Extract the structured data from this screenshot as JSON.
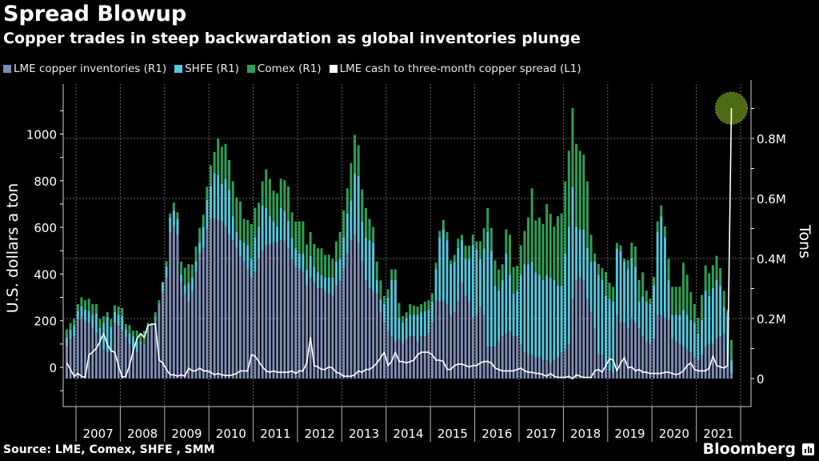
{
  "header": {
    "title": "Spread Blowup",
    "subtitle": "Copper trades in steep backwardation as global inventories plunge"
  },
  "footer": {
    "source": "Source: LME, Comex, SHFE , SMM",
    "logo": "Bloomberg"
  },
  "colors": {
    "lme": "#7d8cb4",
    "shfe": "#55c6dc",
    "comex": "#2f9e58",
    "spread": "#ffffff",
    "highlight": "#4d6b12",
    "background": "#000000"
  },
  "chart_data": {
    "type": "bar",
    "stacked": true,
    "title": "Spread Blowup",
    "subtitle": "Copper trades in steep backwardation as global inventories plunge",
    "frequency": "monthly",
    "x_start": "2006-10",
    "x_end": "2021-10",
    "x_tick_labels": [
      "2007",
      "2008",
      "2009",
      "2010",
      "2011",
      "2012",
      "2013",
      "2014",
      "2015",
      "2016",
      "2017",
      "2018",
      "2019",
      "2020",
      "2021"
    ],
    "ylabel_left": "U.S. dollars a ton",
    "ylabel_right": "Tons",
    "ylim_left": [
      -170,
      1200
    ],
    "ylim_right_millions": [
      -0.09,
      0.99
    ],
    "left_ticks": [
      0,
      200,
      400,
      600,
      800,
      1000
    ],
    "left_tick_labels": [
      "0",
      "200",
      "400",
      "600",
      "800",
      "1000"
    ],
    "right_ticks": [
      0,
      0.2,
      0.4,
      0.6,
      0.8
    ],
    "right_tick_labels": [
      "0",
      "0.2M",
      "0.4M",
      "0.6M",
      "0.8M"
    ],
    "grid": true,
    "legend_placement": "top-left",
    "legend": [
      "LME copper inventories (R1)",
      "SHFE (R1)",
      "Comex (R1)",
      "LME cash to three-month copper spread (L1)"
    ],
    "highlight": "last spread point circled",
    "series": [
      {
        "name": "LME copper inventories (R1)",
        "type": "bar",
        "axis": "right",
        "unit": "million tons",
        "values": [
          0.106,
          0.132,
          0.141,
          0.199,
          0.204,
          0.19,
          0.186,
          0.168,
          0.15,
          0.124,
          0.097,
          0.088,
          0.088,
          0.186,
          0.177,
          0.159,
          0.137,
          0.115,
          0.097,
          0.088,
          0.115,
          0.115,
          0.168,
          0.172,
          0.208,
          0.248,
          0.288,
          0.337,
          0.488,
          0.506,
          0.479,
          0.324,
          0.284,
          0.257,
          0.292,
          0.355,
          0.417,
          0.435,
          0.497,
          0.533,
          0.533,
          0.528,
          0.524,
          0.506,
          0.479,
          0.461,
          0.435,
          0.408,
          0.39,
          0.364,
          0.337,
          0.355,
          0.399,
          0.426,
          0.444,
          0.448,
          0.453,
          0.453,
          0.461,
          0.457,
          0.435,
          0.399,
          0.372,
          0.364,
          0.355,
          0.31,
          0.337,
          0.319,
          0.301,
          0.301,
          0.292,
          0.284,
          0.275,
          0.31,
          0.328,
          0.364,
          0.417,
          0.461,
          0.479,
          0.453,
          0.39,
          0.328,
          0.301,
          0.292,
          0.284,
          0.221,
          0.186,
          0.159,
          0.141,
          0.124,
          0.132,
          0.115,
          0.132,
          0.141,
          0.141,
          0.124,
          0.141,
          0.141,
          0.15,
          0.186,
          0.257,
          0.257,
          0.257,
          0.248,
          0.212,
          0.221,
          0.257,
          0.319,
          0.275,
          0.257,
          0.204,
          0.212,
          0.239,
          0.212,
          0.106,
          0.106,
          0.106,
          0.124,
          0.141,
          0.15,
          0.159,
          0.141,
          0.141,
          0.115,
          0.088,
          0.079,
          0.079,
          0.07,
          0.07,
          0.061,
          0.061,
          0.052,
          0.061,
          0.07,
          0.088,
          0.097,
          0.115,
          0.266,
          0.328,
          0.337,
          0.328,
          0.266,
          0.221,
          0.168,
          0.079,
          0.079,
          0.035,
          0.026,
          0.017,
          0.212,
          0.186,
          0.186,
          0.168,
          0.204,
          0.186,
          0.168,
          0.141,
          0.124,
          0.115,
          0.133,
          0.212,
          0.212,
          0.204,
          0.195,
          0.133,
          0.124,
          0.115,
          0.106,
          0.097,
          0.088,
          0.07,
          0.061,
          0.079,
          0.106,
          0.115,
          0.115,
          0.133,
          0.141,
          0.15,
          0.079,
          0.017
        ]
      },
      {
        "name": "SHFE (R1)",
        "type": "bar",
        "axis": "right",
        "unit": "million tons",
        "values": [
          0.031,
          0.031,
          0.036,
          0.027,
          0.036,
          0.04,
          0.04,
          0.044,
          0.067,
          0.044,
          0.089,
          0.116,
          0.084,
          0.036,
          0.036,
          0.049,
          0.027,
          0.036,
          0.044,
          0.036,
          0.009,
          0,
          0,
          0,
          0,
          0,
          0.031,
          0.036,
          0.049,
          0.053,
          0.053,
          0.022,
          0.027,
          0.062,
          0.044,
          0.036,
          0.036,
          0.071,
          0.098,
          0.107,
          0.151,
          0.151,
          0.124,
          0.16,
          0.151,
          0.08,
          0.053,
          0.053,
          0.062,
          0.08,
          0.062,
          0.116,
          0.107,
          0.151,
          0.124,
          0.093,
          0.071,
          0.053,
          0.107,
          0.102,
          0.089,
          0.071,
          0.062,
          0.053,
          0.062,
          0.053,
          0.071,
          0.053,
          0.053,
          0.044,
          0.044,
          0.053,
          0.062,
          0.08,
          0.071,
          0.107,
          0.133,
          0.133,
          0.204,
          0.222,
          0.133,
          0.142,
          0.16,
          0.16,
          0.044,
          0.044,
          0.062,
          0.111,
          0.187,
          0.204,
          0.071,
          0.071,
          0.071,
          0.071,
          0.071,
          0.089,
          0.08,
          0.084,
          0.08,
          0.071,
          0.107,
          0.213,
          0.24,
          0.213,
          0.169,
          0.169,
          0.178,
          0.142,
          0.124,
          0.142,
          0.24,
          0.218,
          0.16,
          0.222,
          0.382,
          0.32,
          0.204,
          0.169,
          0.187,
          0.267,
          0.187,
          0.142,
          0.151,
          0.231,
          0.293,
          0.302,
          0.311,
          0.284,
          0.276,
          0.267,
          0.284,
          0.284,
          0.267,
          0.24,
          0.222,
          0.32,
          0.391,
          0.373,
          0.178,
          0.16,
          0.169,
          0.169,
          0.169,
          0.222,
          0.267,
          0.249,
          0.24,
          0.24,
          0.24,
          0.222,
          0.24,
          0.204,
          0.196,
          0.196,
          0.187,
          0.089,
          0.133,
          0.133,
          0.133,
          0.178,
          0.276,
          0.329,
          0.267,
          0.133,
          0.08,
          0.089,
          0.098,
          0.124,
          0.116,
          0.107,
          0.116,
          0.089,
          0.116,
          0.187,
          0.16,
          0.187,
          0.196,
          0.169,
          0.089,
          0.142,
          0.044
        ]
      },
      {
        "name": "Comex (R1)",
        "type": "bar",
        "axis": "right",
        "unit": "million tons",
        "values": [
          0.027,
          0.022,
          0.022,
          0.022,
          0.031,
          0.031,
          0.04,
          0.036,
          0.031,
          0.031,
          0.022,
          0.018,
          0.027,
          0.022,
          0.027,
          0.027,
          0.018,
          0.027,
          0.018,
          0.036,
          0.027,
          0.044,
          0.018,
          0.013,
          0.013,
          0.013,
          0.004,
          0.018,
          0.013,
          0.027,
          0.022,
          0.044,
          0.058,
          0.062,
          0.044,
          0.049,
          0.049,
          0.04,
          0.044,
          0.071,
          0.071,
          0.12,
          0.124,
          0.116,
          0.098,
          0.116,
          0.116,
          0.129,
          0.08,
          0.084,
          0.116,
          0.098,
          0.08,
          0.08,
          0.129,
          0.124,
          0.102,
          0.111,
          0.098,
          0.102,
          0.116,
          0.084,
          0.089,
          0.107,
          0.107,
          0.084,
          0.08,
          0.076,
          0.08,
          0.089,
          0.076,
          0.076,
          0.062,
          0.067,
          0.089,
          0.089,
          0.084,
          0.124,
          0.129,
          0.102,
          0.107,
          0.098,
          0.071,
          0.053,
          0.062,
          0.062,
          0.027,
          0.027,
          0.036,
          0.036,
          0.049,
          0.022,
          0.018,
          0.036,
          0.031,
          0.027,
          0.027,
          0.031,
          0.031,
          0.027,
          0.022,
          0.022,
          0.031,
          0.027,
          0.013,
          0.022,
          0.031,
          0.018,
          0.044,
          0.044,
          0.036,
          0.027,
          0.058,
          0.067,
          0.08,
          0.076,
          0.084,
          0.071,
          0.053,
          0.08,
          0.133,
          0.089,
          0.084,
          0.098,
          0.111,
          0.156,
          0.244,
          0.173,
          0.191,
          0.187,
          0.236,
          0.213,
          0.178,
          0.231,
          0.24,
          0.24,
          0.253,
          0.262,
          0.276,
          0.262,
          0.249,
          0.222,
          0.089,
          0.027,
          0.036,
          0.04,
          0.08,
          0.053,
          0.049,
          0.018,
          0.018,
          0.009,
          0.031,
          0.053,
          0.067,
          0.071,
          0.08,
          0.036,
          0.018,
          0.027,
          0.036,
          0.036,
          0.036,
          0.071,
          0.093,
          0.093,
          0.093,
          0.156,
          0.133,
          0.093,
          0.062,
          0.053,
          0.084,
          0.084,
          0.076,
          0.076,
          0.08,
          0.058,
          0.053,
          0.009,
          0.067
        ]
      },
      {
        "name": "LME cash to three-month copper spread (L1)",
        "type": "line",
        "axis": "left",
        "unit": "USD/ton",
        "values": [
          19,
          -9,
          -38,
          -26,
          -38,
          -43,
          54,
          65,
          82,
          111,
          145,
          99,
          71,
          65,
          8,
          -43,
          -38,
          8,
          71,
          122,
          145,
          128,
          179,
          185,
          185,
          31,
          19,
          -9,
          -32,
          -32,
          -38,
          -32,
          -38,
          -3,
          -15,
          -15,
          -3,
          -15,
          -15,
          -21,
          -32,
          -26,
          -32,
          -35,
          -35,
          -32,
          -26,
          -15,
          -15,
          -15,
          54,
          48,
          25,
          2,
          -15,
          -21,
          -15,
          -21,
          -21,
          -21,
          -21,
          -15,
          -26,
          -15,
          -15,
          19,
          128,
          8,
          2,
          -9,
          -9,
          2,
          -3,
          -21,
          -26,
          -38,
          -38,
          -38,
          -32,
          -15,
          -21,
          -9,
          -9,
          2,
          19,
          42,
          65,
          8,
          25,
          65,
          25,
          25,
          19,
          25,
          31,
          54,
          65,
          65,
          65,
          54,
          31,
          31,
          25,
          -9,
          -9,
          8,
          14,
          14,
          8,
          2,
          8,
          8,
          19,
          25,
          25,
          19,
          -3,
          -9,
          -15,
          -15,
          -15,
          -15,
          -9,
          -3,
          -15,
          -21,
          -21,
          -26,
          -26,
          -32,
          -38,
          -26,
          -38,
          -43,
          -43,
          -43,
          -38,
          -49,
          -32,
          -38,
          -43,
          -43,
          -43,
          -15,
          -9,
          -21,
          8,
          37,
          31,
          -15,
          19,
          42,
          -3,
          2,
          -15,
          -9,
          -21,
          -21,
          -26,
          -26,
          -26,
          -26,
          -21,
          -21,
          -26,
          -32,
          -26,
          -15,
          8,
          19,
          -9,
          -15,
          -15,
          -15,
          -3,
          48,
          8,
          2,
          -3,
          8,
          1111
        ]
      }
    ]
  }
}
